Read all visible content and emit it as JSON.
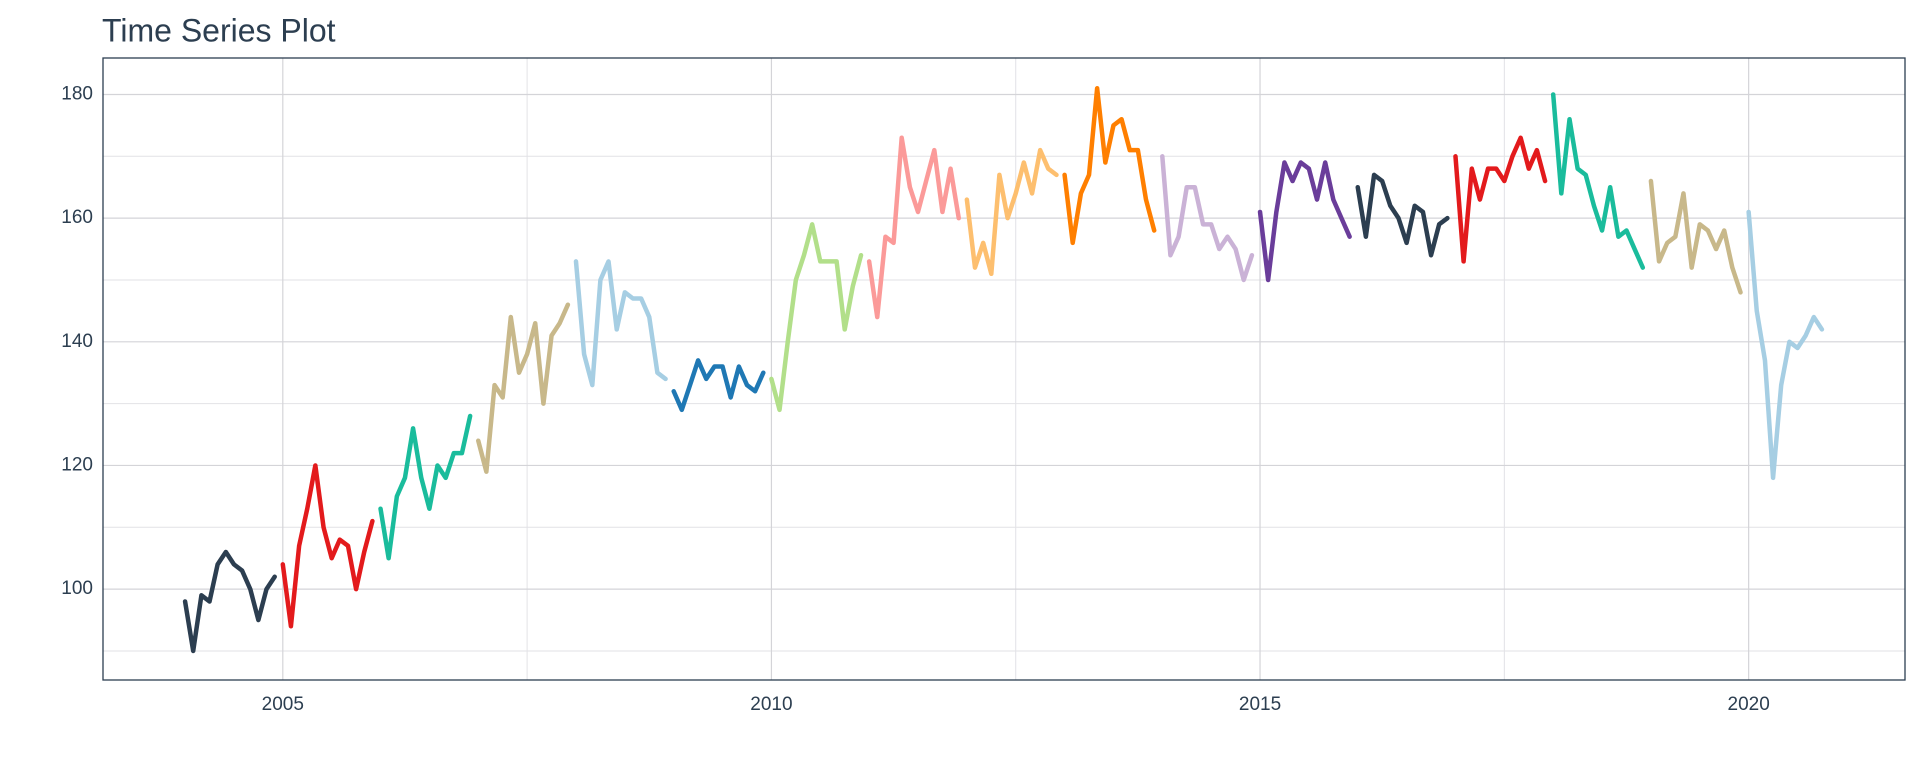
{
  "chart_data": {
    "type": "line",
    "title": "Time Series Plot",
    "xlim": [
      2003.16,
      2021.6
    ],
    "ylim": [
      85.3,
      185.9
    ],
    "xticks": [
      2005,
      2010,
      2015,
      2020
    ],
    "yticks": [
      100,
      120,
      140,
      160,
      180
    ],
    "xminor": [
      2002.5,
      2007.5,
      2012.5,
      2017.5
    ],
    "yminor": [
      90,
      110,
      130,
      150,
      170
    ],
    "grid": true,
    "series": [
      {
        "color": "#2c3e50",
        "x": [
          2004,
          2004.083,
          2004.167,
          2004.25,
          2004.333,
          2004.417,
          2004.5,
          2004.583,
          2004.667,
          2004.75,
          2004.833,
          2004.917
        ],
        "values": [
          98,
          90,
          99,
          98,
          104,
          106,
          104,
          103,
          100,
          95,
          100,
          102
        ]
      },
      {
        "color": "#e31a1c",
        "x": [
          2005,
          2005.083,
          2005.167,
          2005.25,
          2005.333,
          2005.417,
          2005.5,
          2005.583,
          2005.667,
          2005.75,
          2005.833,
          2005.917
        ],
        "values": [
          104,
          94,
          107,
          113,
          120,
          110,
          105,
          108,
          107,
          100,
          106,
          111
        ]
      },
      {
        "color": "#1abc9c",
        "x": [
          2006,
          2006.083,
          2006.167,
          2006.25,
          2006.333,
          2006.417,
          2006.5,
          2006.583,
          2006.667,
          2006.75,
          2006.833,
          2006.917
        ],
        "values": [
          113,
          105,
          115,
          118,
          126,
          118,
          113,
          120,
          118,
          122,
          122,
          128
        ]
      },
      {
        "color": "#c8b88a",
        "x": [
          2007,
          2007.083,
          2007.167,
          2007.25,
          2007.333,
          2007.417,
          2007.5,
          2007.583,
          2007.667,
          2007.75,
          2007.833,
          2007.917
        ],
        "values": [
          124,
          119,
          133,
          131,
          144,
          135,
          138,
          143,
          130,
          141,
          143,
          146
        ]
      },
      {
        "color": "#a6cee3",
        "x": [
          2008,
          2008.083,
          2008.167,
          2008.25,
          2008.333,
          2008.417,
          2008.5,
          2008.583,
          2008.667,
          2008.75,
          2008.833,
          2008.917
        ],
        "values": [
          153,
          138,
          133,
          150,
          153,
          142,
          148,
          147,
          147,
          144,
          135,
          134
        ]
      },
      {
        "color": "#1f78b4",
        "x": [
          2009,
          2009.083,
          2009.167,
          2009.25,
          2009.333,
          2009.417,
          2009.5,
          2009.583,
          2009.667,
          2009.75,
          2009.833,
          2009.917
        ],
        "values": [
          132,
          129,
          133,
          137,
          134,
          136,
          136,
          131,
          136,
          133,
          132,
          135
        ]
      },
      {
        "color": "#b2df8a",
        "x": [
          2010,
          2010.083,
          2010.167,
          2010.25,
          2010.333,
          2010.417,
          2010.5,
          2010.583,
          2010.667,
          2010.75,
          2010.833,
          2010.917
        ],
        "values": [
          134,
          129,
          140,
          150,
          154,
          159,
          153,
          153,
          153,
          142,
          149,
          154
        ]
      },
      {
        "color": "#fb9a99",
        "x": [
          2011,
          2011.083,
          2011.167,
          2011.25,
          2011.333,
          2011.417,
          2011.5,
          2011.583,
          2011.667,
          2011.75,
          2011.833,
          2011.917
        ],
        "values": [
          153,
          144,
          157,
          156,
          173,
          165,
          161,
          166,
          171,
          161,
          168,
          160
        ]
      },
      {
        "color": "#fdbf6f",
        "x": [
          2012,
          2012.083,
          2012.167,
          2012.25,
          2012.333,
          2012.417,
          2012.5,
          2012.583,
          2012.667,
          2012.75,
          2012.833,
          2012.917
        ],
        "values": [
          163,
          152,
          156,
          151,
          167,
          160,
          164,
          169,
          164,
          171,
          168,
          167
        ]
      },
      {
        "color": "#ff7f00",
        "x": [
          2013,
          2013.083,
          2013.167,
          2013.25,
          2013.333,
          2013.417,
          2013.5,
          2013.583,
          2013.667,
          2013.75,
          2013.833,
          2013.917
        ],
        "values": [
          167,
          156,
          164,
          167,
          181,
          169,
          175,
          176,
          171,
          171,
          163,
          158
        ]
      },
      {
        "color": "#cab2d6",
        "x": [
          2014,
          2014.083,
          2014.167,
          2014.25,
          2014.333,
          2014.417,
          2014.5,
          2014.583,
          2014.667,
          2014.75,
          2014.833,
          2014.917
        ],
        "values": [
          170,
          154,
          157,
          165,
          165,
          159,
          159,
          155,
          157,
          155,
          150,
          154
        ]
      },
      {
        "color": "#6a3d9a",
        "x": [
          2015,
          2015.083,
          2015.167,
          2015.25,
          2015.333,
          2015.417,
          2015.5,
          2015.583,
          2015.667,
          2015.75,
          2015.833,
          2015.917
        ],
        "values": [
          161,
          150,
          161,
          169,
          166,
          169,
          168,
          163,
          169,
          163,
          160,
          157
        ]
      },
      {
        "color": "#2c3e50",
        "x": [
          2016,
          2016.083,
          2016.167,
          2016.25,
          2016.333,
          2016.417,
          2016.5,
          2016.583,
          2016.667,
          2016.75,
          2016.833,
          2016.917
        ],
        "values": [
          165,
          157,
          167,
          166,
          162,
          160,
          156,
          162,
          161,
          154,
          159,
          160
        ]
      },
      {
        "color": "#e31a1c",
        "x": [
          2017,
          2017.083,
          2017.167,
          2017.25,
          2017.333,
          2017.417,
          2017.5,
          2017.583,
          2017.667,
          2017.75,
          2017.833,
          2017.917
        ],
        "values": [
          170,
          153,
          168,
          163,
          168,
          168,
          166,
          170,
          173,
          168,
          171,
          166
        ]
      },
      {
        "color": "#1abc9c",
        "x": [
          2018,
          2018.083,
          2018.167,
          2018.25,
          2018.333,
          2018.417,
          2018.5,
          2018.583,
          2018.667,
          2018.75,
          2018.833,
          2018.917
        ],
        "values": [
          180,
          164,
          176,
          168,
          167,
          162,
          158,
          165,
          157,
          158,
          155,
          152
        ]
      },
      {
        "color": "#c8b88a",
        "x": [
          2019,
          2019.083,
          2019.167,
          2019.25,
          2019.333,
          2019.417,
          2019.5,
          2019.583,
          2019.667,
          2019.75,
          2019.833,
          2019.917
        ],
        "values": [
          166,
          153,
          156,
          157,
          164,
          152,
          159,
          158,
          155,
          158,
          152,
          148
        ]
      },
      {
        "color": "#a6cee3",
        "x": [
          2020,
          2020.083,
          2020.167,
          2020.25,
          2020.333,
          2020.417,
          2020.5,
          2020.583,
          2020.667,
          2020.75
        ],
        "values": [
          161,
          145,
          137,
          118,
          133,
          140,
          139,
          141,
          144,
          142
        ]
      }
    ]
  }
}
